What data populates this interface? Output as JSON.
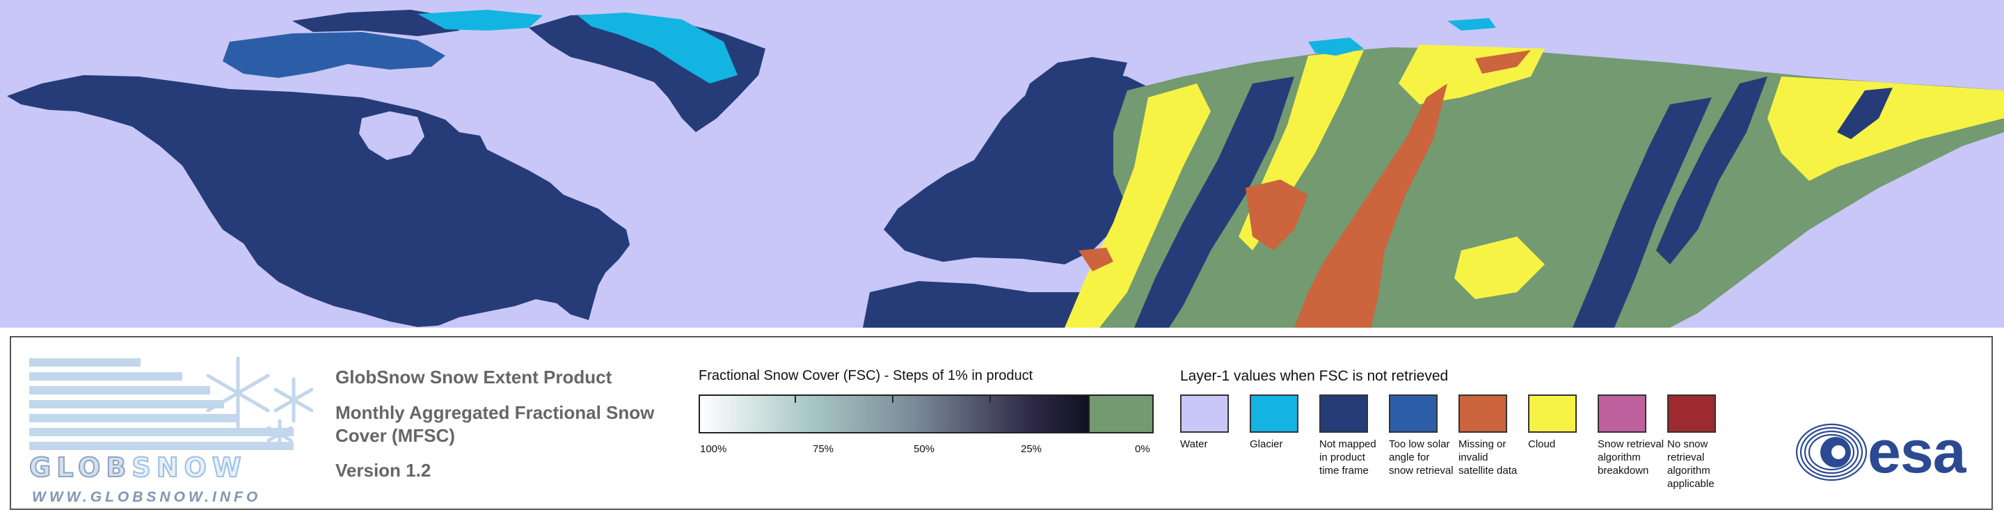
{
  "map": {
    "regions": [
      "North America",
      "Greenland",
      "Europe",
      "Asia"
    ],
    "note_colors": {
      "water": "#c8c7f8",
      "not_mapped": "#263c78",
      "fsc_zero": "#739a70",
      "cloud": "#f7f345",
      "missing": "#cc643e",
      "glacier": "#13b4e2",
      "low_sun": "#2c5ea8"
    }
  },
  "logo": {
    "word_left": "GLOB",
    "word_right": "SNOW",
    "url": "WWW.GLOBSNOW.INFO"
  },
  "product": {
    "title": "GlobSnow Snow Extent Product",
    "subtitle_line1": "Monthly Aggregated Fractional Snow",
    "subtitle_line2": "Cover (MFSC)",
    "version": "Version 1.2"
  },
  "fsc_legend": {
    "title": "Fractional Snow Cover (FSC) - Steps of 1% in product",
    "labels": [
      "100%",
      "75%",
      "50%",
      "25%",
      "0%"
    ]
  },
  "layer1_legend": {
    "title": "Layer-1 values when FSC is not retrieved",
    "items": [
      {
        "label": "Water",
        "color": "#c8c7f8"
      },
      {
        "label": "Glacier",
        "color": "#13b4e2"
      },
      {
        "label": "Not mapped in product time frame",
        "color": "#263c78"
      },
      {
        "label": "Too low solar angle for snow retrieval",
        "color": "#2c5ea8"
      },
      {
        "label": "Missing or invalid satellite data",
        "color": "#cc643e"
      },
      {
        "label": "Cloud",
        "color": "#f7f345"
      },
      {
        "label": "Snow retrieval algorithm breakdown",
        "color": "#bf619f"
      },
      {
        "label": "No snow retrieval algorithm applicable",
        "color": "#9c2a2e"
      }
    ]
  },
  "esa_logo": {
    "text": "esa"
  }
}
